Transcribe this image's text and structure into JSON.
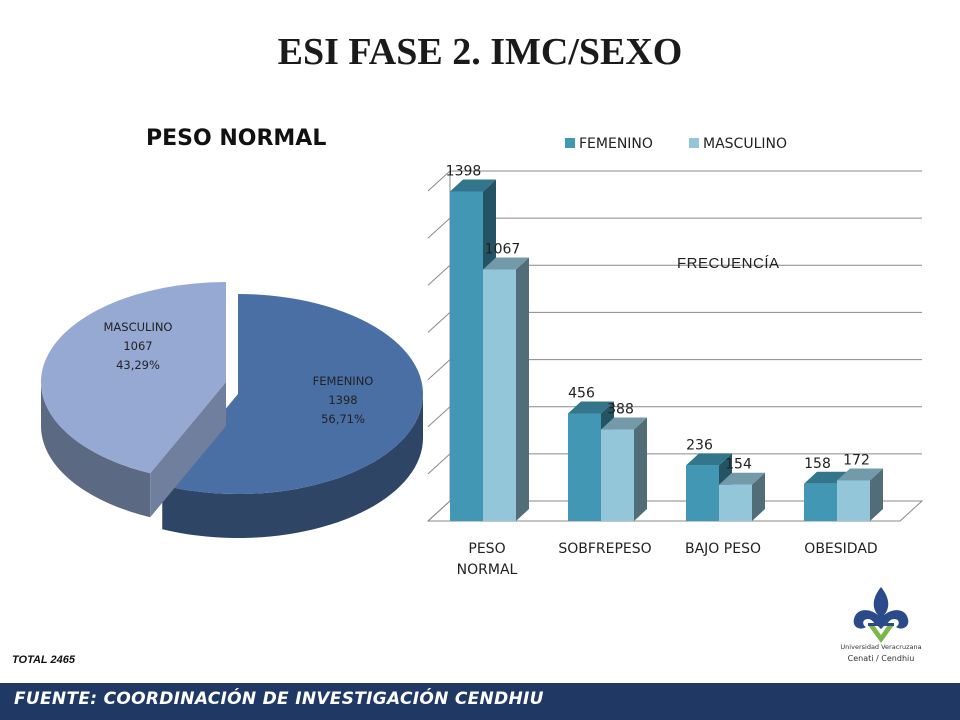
{
  "slide": {
    "title": "ESI FASE 2.  IMC/SEXO",
    "total": "TOTAL  2465",
    "footer": "FUENTE:   COORDINACIÓN DE INVESTIGACIÓN CENDHIU",
    "logo": {
      "line1": "Universidad Veracruzana",
      "line2": "Cenati / Cendhiu"
    }
  },
  "colors": {
    "femenino_pie": "#4a6fa5",
    "masculino_pie": "#95a9d2",
    "femenino_bar": "#4197b4",
    "masculino_bar": "#93c6d8",
    "footer": "#1f3864"
  },
  "chart_data": [
    {
      "type": "pie",
      "title": "PESO NORMAL",
      "slices": [
        {
          "label": "FEMENINO",
          "value": 1398,
          "percent": "56,71%"
        },
        {
          "label": "MASCULINO",
          "value": 1067,
          "percent": "43,29%"
        }
      ]
    },
    {
      "type": "bar",
      "categories": [
        "PESO NORMAL",
        "SOBFREPESO",
        "BAJO PESO",
        "OBESIDAD"
      ],
      "series": [
        {
          "name": "FEMENINO",
          "values": [
            1398,
            456,
            236,
            158
          ]
        },
        {
          "name": "MASCULINO",
          "values": [
            1067,
            388,
            154,
            172
          ]
        }
      ],
      "annotation": "FRECUENCÍA",
      "ylim": [
        0,
        1400
      ],
      "grid": true,
      "legend": "top"
    }
  ]
}
